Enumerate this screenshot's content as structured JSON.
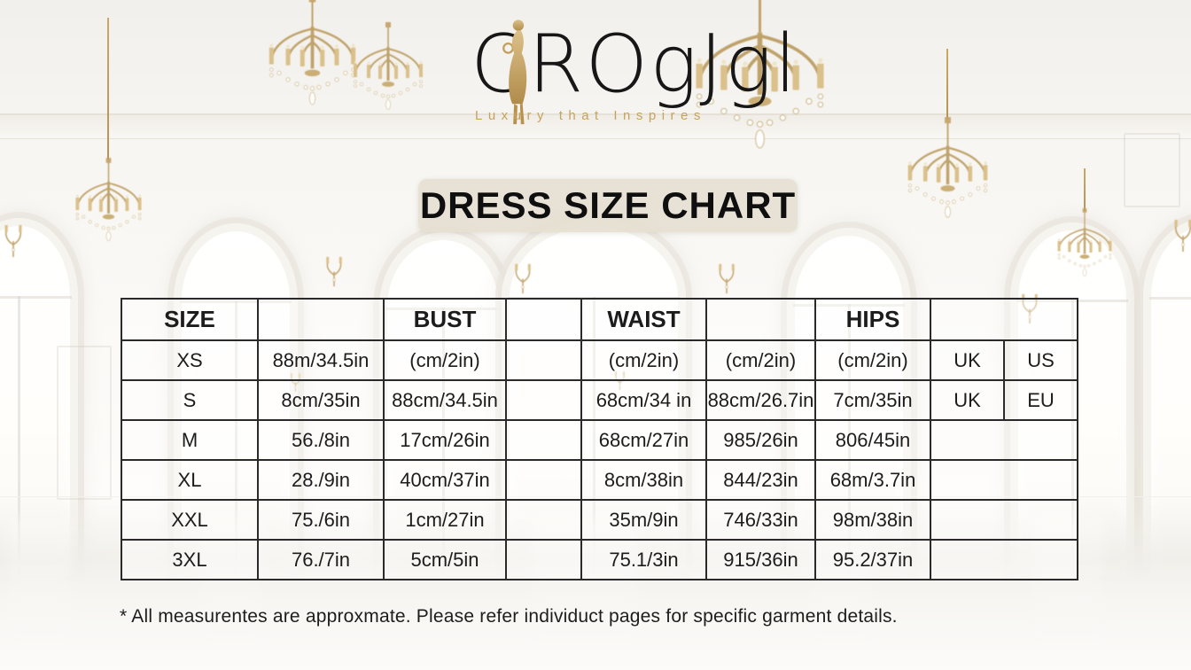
{
  "brand": {
    "logo_text": "CROgJgl",
    "tagline": "Luxury that Inspires"
  },
  "title": "DRESS SIZE CHART",
  "size_chart": {
    "type": "table",
    "header": [
      "SIZE",
      "",
      "BUST",
      "",
      "WAIST",
      "",
      "HIPS",
      ""
    ],
    "rows": [
      [
        "XS",
        "88m/34.5in",
        "(cm/2in)",
        "",
        "(cm/2in)",
        "(cm/2in)",
        "(cm/2in)",
        "UK",
        "US"
      ],
      [
        "S",
        "8cm/35in",
        "88cm/34.5in",
        "",
        "68cm/34 in",
        "88cm/26.7in",
        "7cm/35in",
        "UK",
        "EU"
      ],
      [
        "M",
        "56./8in",
        "17cm/26in",
        "",
        "68cm/27in",
        "985/26in",
        "806/45in",
        ""
      ],
      [
        "XL",
        "28./9in",
        "40cm/37in",
        "",
        "8cm/38in",
        "844/23in",
        "68m/3.7in",
        ""
      ],
      [
        "XXL",
        "75./6in",
        "1cm/27in",
        "",
        "35m/9in",
        "746/33in",
        "98m/38in",
        ""
      ],
      [
        "3XL",
        "76./7in",
        "5cm/5in",
        "",
        "75.1/3in",
        "915/36in",
        "95.2/37in",
        ""
      ]
    ]
  },
  "footnote": "* All measurentes are approxmate. Please refer individuct pages for specific garment details.",
  "colors": {
    "gold": "#c3a266",
    "text": "#1c1c1c",
    "table_border": "#2a2a2a",
    "title_plate_bg": "#e5ded0"
  },
  "icons": {
    "chandelier": "chandelier-icon",
    "wall_sconce": "wall-sconce-icon",
    "logo_figure": "woman-silhouette-icon"
  }
}
